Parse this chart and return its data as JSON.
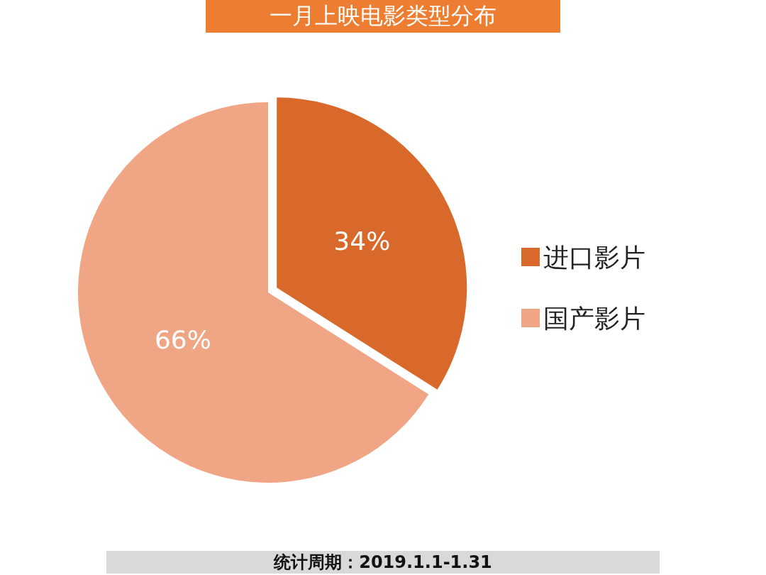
{
  "chart_data": {
    "type": "pie",
    "title": "一月上映电影类型分布",
    "categories": [
      "进口影片",
      "国产影片"
    ],
    "values": [
      34,
      66
    ],
    "colors": [
      "#d8692a",
      "#f0a584"
    ],
    "value_labels": [
      "34%",
      "66%"
    ],
    "legend": "right",
    "annotations": [
      "统计周期：2019.1.1-1.31"
    ]
  }
}
